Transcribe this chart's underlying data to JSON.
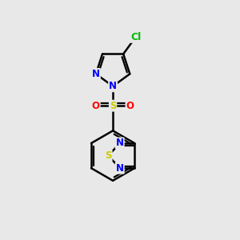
{
  "bg_color": "#e8e8e8",
  "bond_color": "#000000",
  "bond_width": 1.8,
  "atom_colors": {
    "N": "#0000ff",
    "S_sulfonyl": "#cccc00",
    "S_thiadiazole": "#cccc00",
    "O": "#ff0000",
    "Cl": "#00bb00",
    "C": "#000000"
  },
  "font_size": 8.5
}
